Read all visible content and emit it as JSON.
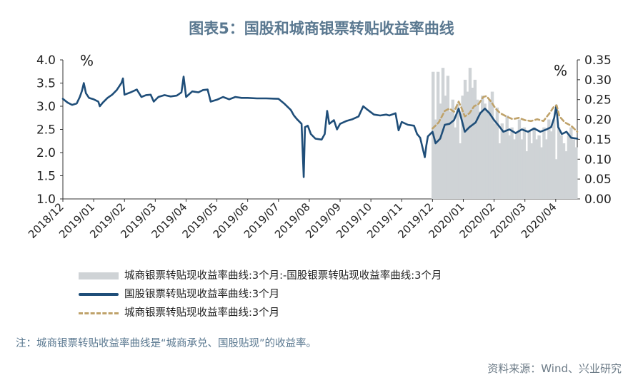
{
  "title": "图表5：国股和城商银票转贴收益率曲线",
  "note": "注：城商银票转贴收益率曲线是“城商承兑、国股贴现”的收益率。",
  "source": "资料来源：Wind、兴业研究",
  "legend": [
    "城商银票转贴现收益率曲线:3个月:-国股银票转贴现收益率曲线:3个月",
    "国股银票转贴现收益率曲线:3个月",
    "城商银票转贴现收益率曲线:3个月"
  ],
  "colors": {
    "guogu": "#1f4e79",
    "chengshang": "#bfa26a",
    "spread": "#cfd3d6",
    "title": "#5a7890"
  },
  "chart_data": {
    "type": "line",
    "left_axis": {
      "unit": "%",
      "ylim": [
        1.0,
        4.0
      ],
      "ticks": [
        "4.0",
        "3.5",
        "3.0",
        "2.5",
        "2.0",
        "1.5",
        "1.0"
      ]
    },
    "right_axis": {
      "unit": "%",
      "ylim": [
        0.0,
        0.35
      ],
      "ticks": [
        "0.35",
        "0.30",
        "0.25",
        "0.20",
        "0.15",
        "0.10",
        "0.05",
        "0.00"
      ]
    },
    "x_ticks": [
      "2018/12",
      "2019/01",
      "2019/02",
      "2019/03",
      "2019/04",
      "2019/05",
      "2019/06",
      "2019/07",
      "2019/08",
      "2019/09",
      "2019/10",
      "2019/11",
      "2019/12",
      "2020/01",
      "2020/02",
      "2020/03",
      "2020/04"
    ],
    "xlim": [
      0,
      16.7
    ],
    "series": [
      {
        "name": "国股银票转贴现收益率曲线:3个月",
        "axis": "left",
        "style": "solid",
        "points": [
          [
            0.0,
            3.16
          ],
          [
            0.15,
            3.08
          ],
          [
            0.3,
            3.03
          ],
          [
            0.45,
            3.06
          ],
          [
            0.55,
            3.2
          ],
          [
            0.62,
            3.33
          ],
          [
            0.68,
            3.5
          ],
          [
            0.75,
            3.28
          ],
          [
            0.85,
            3.18
          ],
          [
            1.0,
            3.15
          ],
          [
            1.15,
            3.1
          ],
          [
            1.2,
            3.0
          ],
          [
            1.3,
            3.08
          ],
          [
            1.45,
            3.18
          ],
          [
            1.6,
            3.25
          ],
          [
            1.75,
            3.35
          ],
          [
            1.9,
            3.5
          ],
          [
            1.95,
            3.6
          ],
          [
            2.0,
            3.25
          ],
          [
            2.2,
            3.3
          ],
          [
            2.4,
            3.36
          ],
          [
            2.55,
            3.2
          ],
          [
            2.7,
            3.24
          ],
          [
            2.85,
            3.25
          ],
          [
            2.95,
            3.1
          ],
          [
            3.1,
            3.2
          ],
          [
            3.3,
            3.24
          ],
          [
            3.5,
            3.21
          ],
          [
            3.7,
            3.23
          ],
          [
            3.85,
            3.3
          ],
          [
            3.92,
            3.64
          ],
          [
            4.0,
            3.2
          ],
          [
            4.2,
            3.32
          ],
          [
            4.4,
            3.3
          ],
          [
            4.55,
            3.35
          ],
          [
            4.7,
            3.36
          ],
          [
            4.8,
            3.1
          ],
          [
            5.0,
            3.14
          ],
          [
            5.2,
            3.2
          ],
          [
            5.4,
            3.15
          ],
          [
            5.6,
            3.2
          ],
          [
            5.8,
            3.18
          ],
          [
            6.0,
            3.18
          ],
          [
            6.3,
            3.17
          ],
          [
            6.6,
            3.17
          ],
          [
            7.0,
            3.16
          ],
          [
            7.2,
            3.05
          ],
          [
            7.4,
            2.92
          ],
          [
            7.5,
            2.8
          ],
          [
            7.6,
            2.72
          ],
          [
            7.75,
            2.62
          ],
          [
            7.82,
            1.47
          ],
          [
            7.86,
            2.55
          ],
          [
            7.95,
            2.58
          ],
          [
            8.05,
            2.4
          ],
          [
            8.2,
            2.3
          ],
          [
            8.4,
            2.28
          ],
          [
            8.5,
            2.4
          ],
          [
            8.58,
            2.9
          ],
          [
            8.65,
            2.62
          ],
          [
            8.8,
            2.7
          ],
          [
            8.9,
            2.5
          ],
          [
            9.0,
            2.62
          ],
          [
            9.2,
            2.68
          ],
          [
            9.4,
            2.72
          ],
          [
            9.6,
            2.78
          ],
          [
            9.75,
            3.0
          ],
          [
            9.9,
            2.92
          ],
          [
            10.1,
            2.82
          ],
          [
            10.3,
            2.8
          ],
          [
            10.5,
            2.82
          ],
          [
            10.6,
            2.8
          ],
          [
            10.8,
            2.85
          ],
          [
            10.9,
            2.48
          ],
          [
            11.0,
            2.66
          ],
          [
            11.2,
            2.6
          ],
          [
            11.4,
            2.58
          ],
          [
            11.5,
            2.4
          ],
          [
            11.6,
            2.32
          ],
          [
            11.75,
            1.9
          ],
          [
            11.8,
            2.15
          ],
          [
            11.85,
            2.35
          ],
          [
            12.0,
            2.45
          ],
          [
            12.1,
            2.2
          ],
          [
            12.25,
            2.3
          ],
          [
            12.4,
            2.6
          ],
          [
            12.55,
            2.62
          ],
          [
            12.7,
            2.7
          ],
          [
            12.85,
            2.95
          ],
          [
            12.95,
            2.7
          ],
          [
            13.05,
            2.45
          ],
          [
            13.2,
            2.55
          ],
          [
            13.4,
            2.65
          ],
          [
            13.55,
            2.85
          ],
          [
            13.7,
            2.95
          ],
          [
            13.85,
            2.85
          ],
          [
            14.0,
            2.7
          ],
          [
            14.15,
            2.58
          ],
          [
            14.3,
            2.45
          ],
          [
            14.5,
            2.5
          ],
          [
            14.7,
            2.42
          ],
          [
            14.9,
            2.5
          ],
          [
            15.1,
            2.45
          ],
          [
            15.3,
            2.52
          ],
          [
            15.5,
            2.45
          ],
          [
            15.7,
            2.5
          ],
          [
            15.85,
            2.55
          ],
          [
            15.95,
            2.75
          ],
          [
            16.02,
            3.02
          ],
          [
            16.08,
            2.55
          ],
          [
            16.2,
            2.4
          ],
          [
            16.35,
            2.45
          ],
          [
            16.5,
            2.32
          ],
          [
            16.7,
            2.3
          ]
        ]
      },
      {
        "name": "城商银票转贴现收益率曲线:3个月",
        "axis": "left",
        "style": "dashed",
        "points": [
          [
            12.0,
            2.52
          ],
          [
            12.2,
            2.65
          ],
          [
            12.4,
            2.9
          ],
          [
            12.55,
            2.95
          ],
          [
            12.7,
            2.88
          ],
          [
            12.85,
            3.1
          ],
          [
            12.95,
            2.95
          ],
          [
            13.05,
            2.78
          ],
          [
            13.2,
            2.85
          ],
          [
            13.35,
            3.0
          ],
          [
            13.5,
            3.05
          ],
          [
            13.65,
            3.2
          ],
          [
            13.75,
            3.22
          ],
          [
            13.9,
            3.1
          ],
          [
            14.05,
            2.95
          ],
          [
            14.2,
            2.85
          ],
          [
            14.4,
            2.78
          ],
          [
            14.6,
            2.72
          ],
          [
            14.8,
            2.75
          ],
          [
            15.0,
            2.7
          ],
          [
            15.2,
            2.68
          ],
          [
            15.4,
            2.72
          ],
          [
            15.6,
            2.68
          ],
          [
            15.8,
            2.85
          ],
          [
            15.95,
            3.0
          ],
          [
            16.03,
            3.02
          ],
          [
            16.12,
            2.78
          ],
          [
            16.3,
            2.65
          ],
          [
            16.5,
            2.58
          ],
          [
            16.7,
            2.45
          ]
        ]
      },
      {
        "name": "城商银票转贴现收益率曲线:3个月:-国股银票转贴现收益率曲线:3个月",
        "axis": "right",
        "style": "bar",
        "points": [
          [
            12.02,
            0.32
          ],
          [
            12.1,
            0.2
          ],
          [
            12.18,
            0.32
          ],
          [
            12.26,
            0.24
          ],
          [
            12.34,
            0.33
          ],
          [
            12.42,
            0.26
          ],
          [
            12.5,
            0.31
          ],
          [
            12.58,
            0.22
          ],
          [
            12.66,
            0.25
          ],
          [
            12.74,
            0.18
          ],
          [
            12.82,
            0.24
          ],
          [
            12.9,
            0.14
          ],
          [
            12.98,
            0.26
          ],
          [
            13.06,
            0.3
          ],
          [
            13.14,
            0.27
          ],
          [
            13.22,
            0.33
          ],
          [
            13.3,
            0.28
          ],
          [
            13.38,
            0.3
          ],
          [
            13.46,
            0.25
          ],
          [
            13.54,
            0.22
          ],
          [
            13.62,
            0.26
          ],
          [
            13.7,
            0.24
          ],
          [
            13.78,
            0.22
          ],
          [
            13.86,
            0.25
          ],
          [
            13.94,
            0.27
          ],
          [
            14.02,
            0.19
          ],
          [
            14.1,
            0.23
          ],
          [
            14.18,
            0.14
          ],
          [
            14.26,
            0.19
          ],
          [
            14.34,
            0.17
          ],
          [
            14.42,
            0.21
          ],
          [
            14.5,
            0.16
          ],
          [
            14.58,
            0.18
          ],
          [
            14.66,
            0.15
          ],
          [
            14.74,
            0.17
          ],
          [
            14.82,
            0.2
          ],
          [
            14.9,
            0.15
          ],
          [
            14.98,
            0.18
          ],
          [
            15.06,
            0.12
          ],
          [
            15.14,
            0.17
          ],
          [
            15.22,
            0.14
          ],
          [
            15.3,
            0.18
          ],
          [
            15.38,
            0.15
          ],
          [
            15.46,
            0.16
          ],
          [
            15.54,
            0.13
          ],
          [
            15.62,
            0.18
          ],
          [
            15.7,
            0.15
          ],
          [
            15.78,
            0.2
          ],
          [
            15.86,
            0.17
          ],
          [
            15.94,
            0.2
          ],
          [
            16.02,
            0.1
          ],
          [
            16.1,
            0.18
          ],
          [
            16.18,
            0.16
          ],
          [
            16.26,
            0.14
          ],
          [
            16.34,
            0.12
          ],
          [
            16.42,
            0.16
          ],
          [
            16.5,
            0.18
          ],
          [
            16.58,
            0.15
          ],
          [
            16.66,
            0.13
          ]
        ]
      }
    ]
  }
}
